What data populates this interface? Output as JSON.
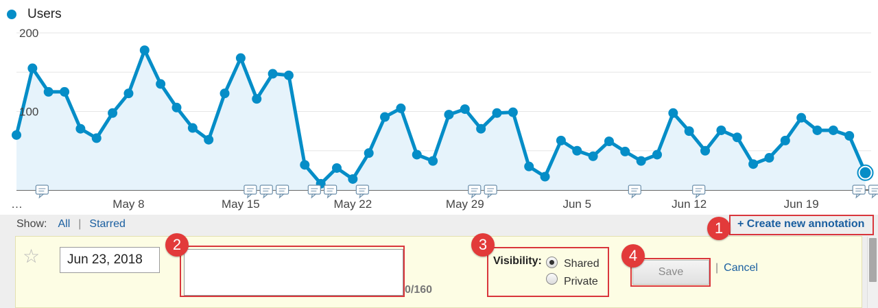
{
  "legend": {
    "label": "Users",
    "color": "#058dc7"
  },
  "chart_data": {
    "type": "area",
    "title": "",
    "xlabel": "",
    "ylabel": "",
    "ylim": [
      0,
      200
    ],
    "y_ticks": [
      "100",
      "200"
    ],
    "x_start_label": "…",
    "x_tick_labels": [
      "May 8",
      "May 15",
      "May 22",
      "May 29",
      "Jun 5",
      "Jun 12",
      "Jun 19"
    ],
    "x_tick_index": [
      7,
      14,
      21,
      28,
      35,
      42,
      49
    ],
    "grid": true,
    "series": [
      {
        "name": "Users",
        "color": "#058dc7",
        "values": [
          70,
          155,
          125,
          125,
          78,
          66,
          98,
          123,
          178,
          135,
          105,
          79,
          64,
          123,
          168,
          116,
          148,
          146,
          32,
          8,
          28,
          14,
          47,
          93,
          104,
          45,
          37,
          96,
          103,
          78,
          98,
          99,
          30,
          17,
          63,
          50,
          43,
          62,
          49,
          37,
          45,
          98,
          75,
          50,
          76,
          67,
          33,
          41,
          63,
          92,
          76,
          76,
          69,
          22
        ]
      }
    ],
    "annotation_markers_at_index": [
      1,
      14,
      15,
      16,
      18,
      19,
      21,
      28,
      29,
      38,
      42,
      52,
      53
    ]
  },
  "annotations": {
    "show_label": "Show:",
    "filter_all": "All",
    "filter_starred": "Starred",
    "create_link": "+ Create new annotation",
    "date_value": "Jun 23, 2018",
    "note_value": "",
    "char_count": "0/160",
    "visibility_label": "Visibility:",
    "visibility_shared": "Shared",
    "visibility_private": "Private",
    "save_label": "Save",
    "cancel_label": "Cancel"
  },
  "steps": [
    "1",
    "2",
    "3",
    "4"
  ],
  "colors": {
    "highlight": "#d9353b",
    "badge": "#e23a3a",
    "link": "#1a5fa0",
    "form_bg": "#fdfde4"
  }
}
